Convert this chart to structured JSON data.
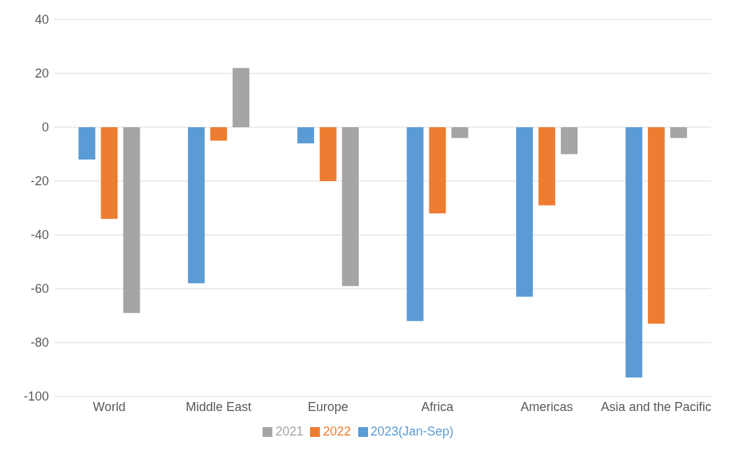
{
  "chart_data": {
    "type": "bar",
    "categories": [
      "World",
      "Middle East",
      "Europe",
      "Africa",
      "Americas",
      "Asia and the Pacific"
    ],
    "series": [
      {
        "name": "2023(Jan-Sep)",
        "color": "#5b9bd5",
        "values": [
          -12,
          -58,
          -6,
          -72,
          -63,
          -93
        ]
      },
      {
        "name": "2022",
        "color": "#ed7d31",
        "values": [
          -34,
          -5,
          -20,
          -32,
          -29,
          -73
        ]
      },
      {
        "name": "2021",
        "color": "#a5a5a5",
        "values": [
          -69,
          22,
          -59,
          -4,
          -10,
          -4
        ]
      }
    ],
    "ylim": [
      -100,
      40
    ],
    "yticks": [
      -100,
      -80,
      -60,
      -40,
      -20,
      0,
      20,
      40
    ],
    "grid": "y",
    "legend": "bottom"
  }
}
